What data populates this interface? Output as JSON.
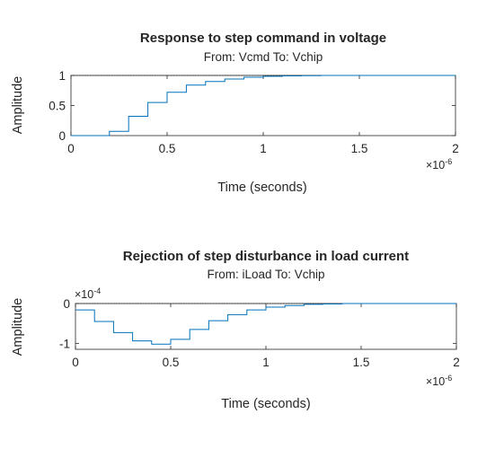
{
  "chart_data": [
    {
      "type": "line",
      "title": "Response to step command in voltage",
      "subtitle": "From: Vcmd  To: Vchip",
      "xlabel": "Time (seconds)",
      "ylabel": "Amplitude",
      "x_exponent": "×10",
      "x_exponent_power": "-6",
      "xlim": [
        0,
        2
      ],
      "ylim": [
        0,
        1
      ],
      "xticks": [
        "0",
        "0.5",
        "1",
        "1.5",
        "2"
      ],
      "xtick_values": [
        0,
        0.5,
        1,
        1.5,
        2
      ],
      "yticks": [
        "0",
        "0.5",
        "1"
      ],
      "ytick_values": [
        0,
        0.5,
        1
      ],
      "reference_line": 1,
      "color": "#0072bd",
      "series": [
        {
          "x": [
            0,
            0.1,
            0.2,
            0.3,
            0.4,
            0.5,
            0.6,
            0.7,
            0.8,
            0.9,
            1.0,
            1.1,
            1.2,
            1.3,
            2.0
          ],
          "y": [
            0,
            0,
            0.07,
            0.32,
            0.55,
            0.72,
            0.84,
            0.9,
            0.94,
            0.97,
            0.985,
            0.993,
            0.997,
            1.0,
            1.0
          ]
        }
      ]
    },
    {
      "type": "line",
      "title": "Rejection of step disturbance in load current",
      "subtitle": "From: iLoad  To: Vchip",
      "xlabel": "Time (seconds)",
      "ylabel": "Amplitude",
      "x_exponent": "×10",
      "x_exponent_power": "-6",
      "y_exponent": "×10",
      "y_exponent_power": "-4",
      "xlim": [
        0,
        2
      ],
      "ylim": [
        -1.15,
        0
      ],
      "xticks": [
        "0",
        "0.5",
        "1",
        "1.5",
        "2"
      ],
      "xtick_values": [
        0,
        0.5,
        1,
        1.5,
        2
      ],
      "yticks": [
        "0",
        "-1"
      ],
      "ytick_values": [
        0,
        -1
      ],
      "reference_line": 0,
      "color": "#0072bd",
      "series": [
        {
          "x": [
            0,
            0.1,
            0.2,
            0.3,
            0.4,
            0.5,
            0.6,
            0.7,
            0.8,
            0.9,
            1.0,
            1.1,
            1.2,
            1.3,
            1.4,
            2.0
          ],
          "y": [
            -0.16,
            -0.45,
            -0.73,
            -0.94,
            -1.02,
            -0.9,
            -0.65,
            -0.43,
            -0.28,
            -0.16,
            -0.09,
            -0.05,
            -0.02,
            -0.01,
            0,
            0
          ]
        }
      ]
    }
  ]
}
